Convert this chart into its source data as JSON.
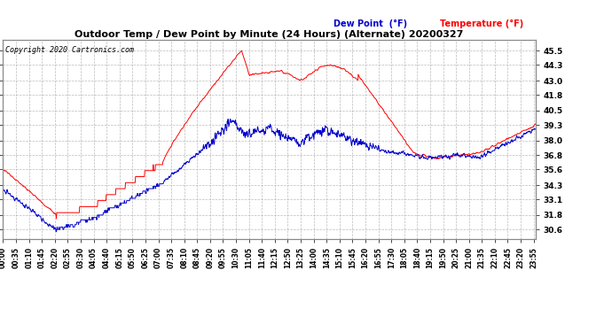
{
  "title": "Outdoor Temp / Dew Point by Minute (24 Hours) (Alternate) 20200327",
  "copyright": "Copyright 2020 Cartronics.com",
  "legend_dew": "Dew Point  (°F)",
  "legend_temp": "Temperature (°F)",
  "yticks": [
    30.6,
    31.8,
    33.1,
    34.3,
    35.6,
    36.8,
    38.0,
    39.3,
    40.5,
    41.8,
    43.0,
    44.3,
    45.5
  ],
  "ylim": [
    29.8,
    46.4
  ],
  "bg_color": "#ffffff",
  "grid_color": "#aaaaaa",
  "temp_color": "#ff0000",
  "dew_color": "#0000cc",
  "title_color": "#000000",
  "copyright_color": "#000000",
  "legend_dew_color": "#0000cc",
  "legend_temp_color": "#ff0000",
  "minutes": 1440,
  "tick_interval_min": 35
}
